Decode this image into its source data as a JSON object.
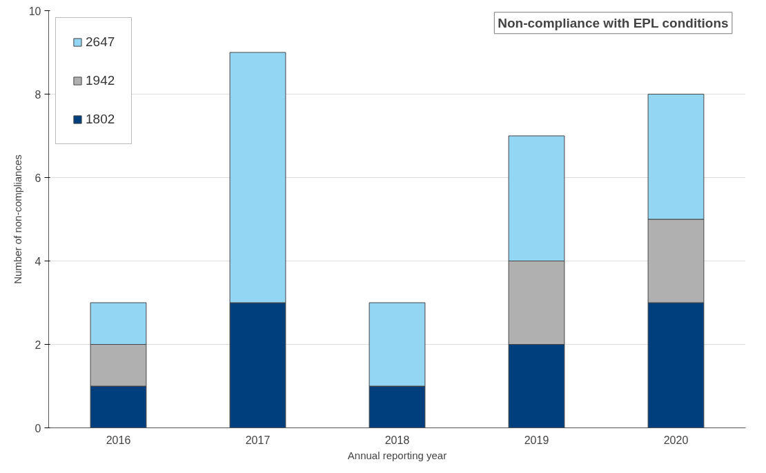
{
  "chart_data": {
    "type": "bar",
    "title": "Non-compliance with EPL conditions",
    "xlabel": "Annual reporting year",
    "ylabel": "Number of non-compliances",
    "categories": [
      "2016",
      "2017",
      "2018",
      "2019",
      "2020"
    ],
    "stacked": true,
    "series": [
      {
        "name": "1802",
        "color": "#003f7d",
        "values": [
          1,
          3,
          1,
          2,
          3
        ]
      },
      {
        "name": "1942",
        "color": "#b0b0b0",
        "values": [
          1,
          0,
          0,
          2,
          2
        ]
      },
      {
        "name": "2647",
        "color": "#93d6f4",
        "values": [
          1,
          6,
          2,
          3,
          3
        ]
      }
    ],
    "ylim": [
      0,
      10
    ],
    "yticks": [
      0,
      2,
      4,
      6,
      8,
      10
    ],
    "grid": "y",
    "legend": "top left"
  }
}
